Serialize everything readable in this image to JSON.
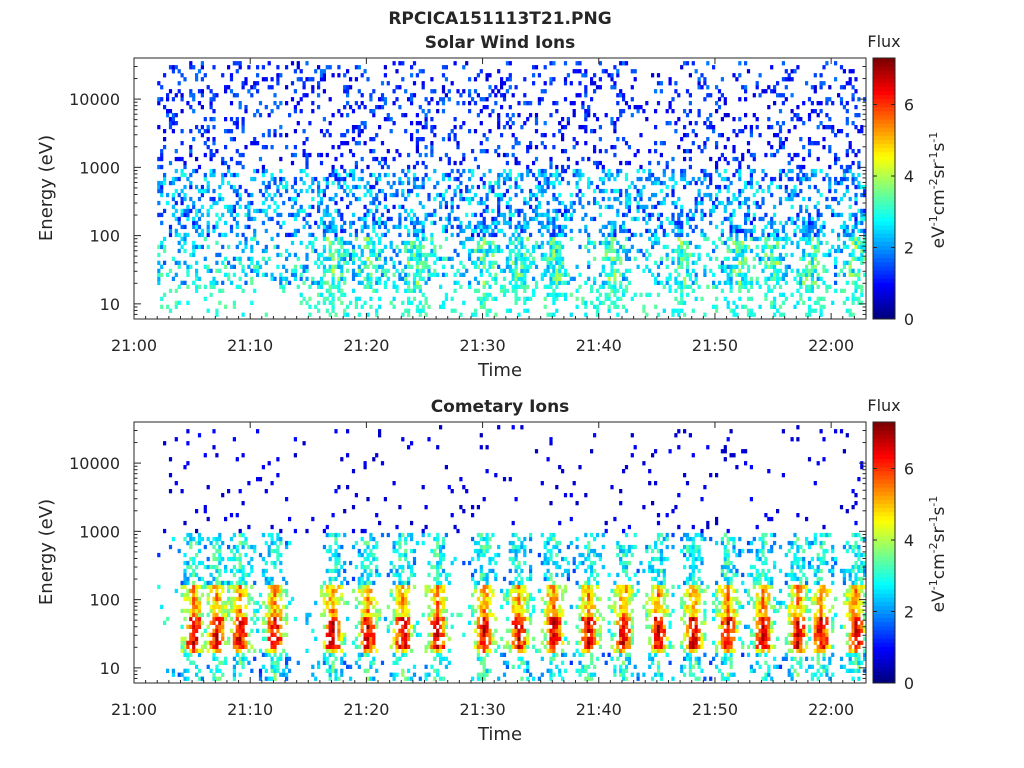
{
  "figure": {
    "title": "RPCICA151113T21.PNG"
  },
  "chart_data": [
    {
      "type": "heatmap",
      "title": "Solar Wind Ions",
      "xlabel": "Time",
      "ylabel": "Energy (eV)",
      "y_scale": "log",
      "ylim": [
        6,
        40000
      ],
      "xlim": [
        "21:00",
        "22:03"
      ],
      "x_ticks": [
        "21:00",
        "21:10",
        "21:20",
        "21:30",
        "21:40",
        "21:50",
        "22:00"
      ],
      "y_ticks": [
        "10",
        "100",
        "1000",
        "10000"
      ],
      "colorbar": {
        "label": "eV^-1 cm^-2 sr^-1 s^-1",
        "title": "Flux",
        "range": [
          0,
          7.3
        ],
        "ticks": [
          "0",
          "2",
          "4",
          "6"
        ],
        "colormap": "jet"
      },
      "data_start": "21:02",
      "data_end": "22:03",
      "description_values": {
        "dominant_flux_range": [
          1,
          3.5
        ],
        "bursts_at_minutes": [
          17,
          20,
          24,
          30,
          33,
          36,
          41,
          47,
          52,
          55,
          58,
          62
        ]
      }
    },
    {
      "type": "heatmap",
      "title": "Cometary Ions",
      "xlabel": "Time",
      "ylabel": "Energy (eV)",
      "y_scale": "log",
      "ylim": [
        6,
        40000
      ],
      "xlim": [
        "21:00",
        "22:03"
      ],
      "x_ticks": [
        "21:00",
        "21:10",
        "21:20",
        "21:30",
        "21:40",
        "21:50",
        "22:00"
      ],
      "y_ticks": [
        "10",
        "100",
        "1000",
        "10000"
      ],
      "colorbar": {
        "label": "eV^-1 cm^-2 sr^-1 s^-1",
        "title": "Flux",
        "range": [
          0,
          7.3
        ],
        "ticks": [
          "0",
          "2",
          "4",
          "6"
        ],
        "colormap": "jet"
      },
      "data_start": "21:02",
      "data_end": "22:03",
      "description_values": {
        "peak_flux": 6.3,
        "peak_energy_eV": 30,
        "bursts_at_minutes": [
          5,
          7,
          9,
          12,
          17,
          20,
          23,
          26,
          30,
          33,
          36,
          39,
          42,
          45,
          48,
          51,
          54,
          57,
          59,
          62
        ]
      }
    }
  ]
}
